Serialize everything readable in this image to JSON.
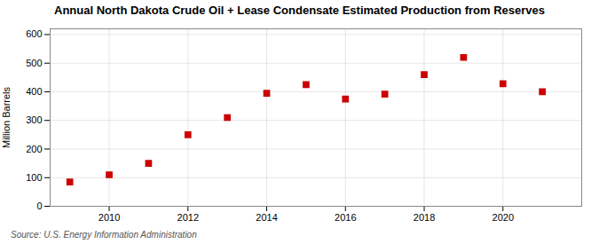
{
  "chart_data": {
    "type": "scatter",
    "title": "Annual North Dakota Crude Oil + Lease Condensate Estimated Production from Reserves",
    "ylabel": "Million Barrels",
    "source": "Source: U.S. Energy Information Administration",
    "x": [
      2009,
      2010,
      2011,
      2012,
      2013,
      2014,
      2015,
      2016,
      2017,
      2018,
      2019,
      2020,
      2021
    ],
    "values": [
      85,
      110,
      150,
      250,
      310,
      395,
      425,
      375,
      392,
      460,
      520,
      428,
      400
    ],
    "color": "#cc0000",
    "marker": "square",
    "xlim": [
      2008.5,
      2022.0
    ],
    "ylim": [
      0,
      620
    ],
    "xticks": [
      2010,
      2012,
      2014,
      2016,
      2018,
      2020
    ],
    "yticks": [
      0,
      100,
      200,
      300,
      400,
      500,
      600
    ],
    "grid": true
  }
}
